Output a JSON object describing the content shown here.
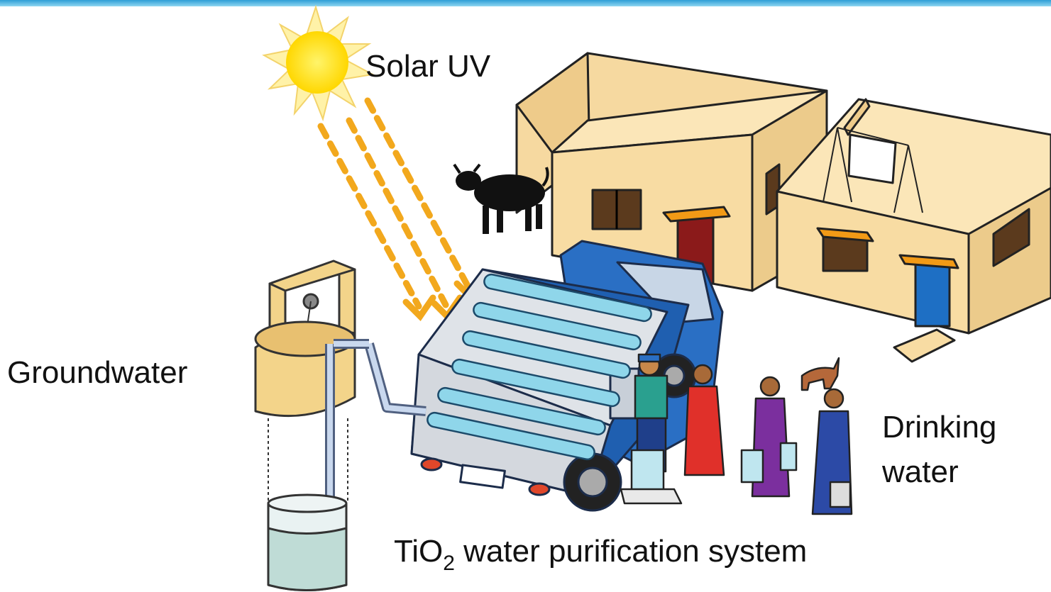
{
  "labels": {
    "solar_uv": "Solar UV",
    "groundwater": "Groundwater",
    "drinking_water": [
      "Drinking",
      "water"
    ],
    "system": {
      "main": "TiO",
      "subscript": "2",
      "rest": " water purification system"
    }
  }
}
